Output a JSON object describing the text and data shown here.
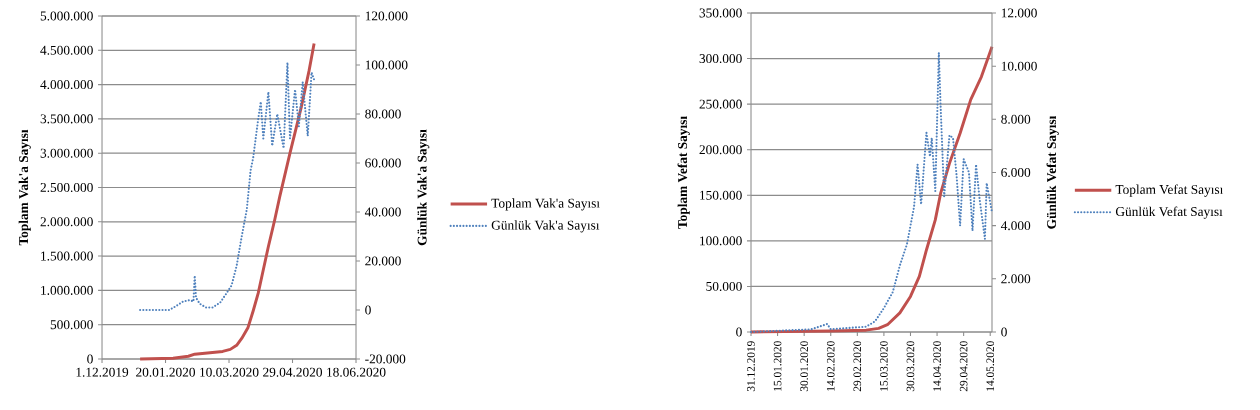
{
  "chart_data": [
    {
      "type": "line",
      "ylabel": "Toplam Vak'a Sayısı",
      "y2label": "Günlük  Vak'a Sayısı",
      "grid": "y",
      "legend": "right",
      "xlim": [
        "2019-12-01",
        "2020-06-18"
      ],
      "xticks": [
        {
          "value": "2019-12-01",
          "label": "1.12.2019"
        },
        {
          "value": "2020-01-20",
          "label": "20.01.2020"
        },
        {
          "value": "2020-03-10",
          "label": "10.03.2020"
        },
        {
          "value": "2020-04-29",
          "label": "29.04.2020"
        },
        {
          "value": "2020-06-18",
          "label": "18.06.2020"
        }
      ],
      "ylim": [
        0,
        5000000
      ],
      "yticks": [
        0,
        {
          "value": 500000,
          "label": "500.000"
        },
        {
          "value": 1000000,
          "label": "1.000.000"
        },
        {
          "value": 1500000,
          "label": "1.500.000"
        },
        {
          "value": 2000000,
          "label": "2.000.000"
        },
        {
          "value": 2500000,
          "label": "2.500.000"
        },
        {
          "value": 3000000,
          "label": "3.000.000"
        },
        {
          "value": 3500000,
          "label": "3.500.000"
        },
        {
          "value": 4000000,
          "label": "4.000.000"
        },
        {
          "value": 4500000,
          "label": "4.500.000"
        },
        {
          "value": 5000000,
          "label": "5.000.000"
        }
      ],
      "y2lim": [
        -20000,
        120000
      ],
      "y2ticks": [
        {
          "value": -20000,
          "label": "-20.000"
        },
        0,
        {
          "value": 20000,
          "label": "20.000"
        },
        {
          "value": 40000,
          "label": "40.000"
        },
        {
          "value": 60000,
          "label": "60.000"
        },
        {
          "value": 80000,
          "label": "80.000"
        },
        {
          "value": 100000,
          "label": "100.000"
        },
        {
          "value": 120000,
          "label": "120.000"
        }
      ],
      "series": [
        {
          "name": "Toplam Vak'a Sayısı",
          "color": "#c0504d",
          "line_style": "solid",
          "x": [
            "2019-12-31",
            "2020-01-26",
            "2020-02-07",
            "2020-02-12",
            "2020-02-24",
            "2020-03-05",
            "2020-03-11",
            "2020-03-16",
            "2020-03-20",
            "2020-03-25",
            "2020-03-29",
            "2020-04-02",
            "2020-04-06",
            "2020-04-10",
            "2020-04-15",
            "2020-04-19",
            "2020-04-27",
            "2020-05-06",
            "2020-05-12",
            "2020-05-16"
          ],
          "values": [
            0,
            10000,
            40000,
            70000,
            90000,
            110000,
            140000,
            200000,
            300000,
            460000,
            700000,
            960000,
            1300000,
            1640000,
            2030000,
            2370000,
            3000000,
            3680000,
            4200000,
            4600000
          ]
        },
        {
          "name": "Günlük Vak'a Sayısı",
          "color": "#4f81bd",
          "line_style": "dotted",
          "axis": "y2",
          "x": [
            "2019-12-31",
            "2020-01-23",
            "2020-01-28",
            "2020-02-03",
            "2020-02-08",
            "2020-02-11",
            "2020-02-12",
            "2020-02-13",
            "2020-02-16",
            "2020-02-21",
            "2020-02-26",
            "2020-03-03",
            "2020-03-07",
            "2020-03-12",
            "2020-03-16",
            "2020-03-20",
            "2020-03-24",
            "2020-03-27",
            "2020-03-29",
            "2020-04-02",
            "2020-04-04",
            "2020-04-06",
            "2020-04-10",
            "2020-04-13",
            "2020-04-17",
            "2020-04-22",
            "2020-04-25",
            "2020-04-27",
            "2020-05-01",
            "2020-05-04",
            "2020-05-07",
            "2020-05-11",
            "2020-05-14",
            "2020-05-16"
          ],
          "values": [
            0,
            0,
            1500,
            3500,
            4000,
            3500,
            14000,
            5000,
            2500,
            1000,
            1000,
            3000,
            6000,
            10000,
            18000,
            30000,
            41000,
            57000,
            62000,
            78000,
            85000,
            70000,
            89000,
            67000,
            80000,
            66000,
            101000,
            70000,
            90000,
            75000,
            93000,
            71000,
            97000,
            94000
          ]
        }
      ]
    },
    {
      "type": "line",
      "ylabel": "Toplam Vefat Sayısı",
      "y2label": "Günlük  Vefat Sayısı",
      "grid": "y",
      "legend": "right",
      "xlim": [
        "2019-12-31",
        "2020-05-15"
      ],
      "xticks": [
        {
          "value": "2019-12-31",
          "label": "31.12.2019"
        },
        {
          "value": "2020-01-15",
          "label": "15.01.2020"
        },
        {
          "value": "2020-01-30",
          "label": "30.01.2020"
        },
        {
          "value": "2020-02-14",
          "label": "14.02.2020"
        },
        {
          "value": "2020-02-29",
          "label": "29.02.2020"
        },
        {
          "value": "2020-03-15",
          "label": "15.03.2020"
        },
        {
          "value": "2020-03-30",
          "label": "30.03.2020"
        },
        {
          "value": "2020-04-14",
          "label": "14.04.2020"
        },
        {
          "value": "2020-04-29",
          "label": "29.04.2020"
        },
        {
          "value": "2020-05-14",
          "label": "14.05.2020"
        }
      ],
      "ylim": [
        0,
        350000
      ],
      "yticks": [
        0,
        {
          "value": 50000,
          "label": "50.000"
        },
        {
          "value": 100000,
          "label": "100.000"
        },
        {
          "value": 150000,
          "label": "150.000"
        },
        {
          "value": 200000,
          "label": "200.000"
        },
        {
          "value": 250000,
          "label": "250.000"
        },
        {
          "value": 300000,
          "label": "300.000"
        },
        {
          "value": 350000,
          "label": "350.000"
        }
      ],
      "y2lim": [
        0,
        12000
      ],
      "y2ticks": [
        0,
        {
          "value": 2000,
          "label": "2.000"
        },
        {
          "value": 4000,
          "label": "4.000"
        },
        {
          "value": 6000,
          "label": "6.000"
        },
        {
          "value": 8000,
          "label": "8.000"
        },
        {
          "value": 10000,
          "label": "10.000"
        },
        {
          "value": 12000,
          "label": "12.000"
        }
      ],
      "series": [
        {
          "name": "Toplam Vefat Sayısı",
          "color": "#c0504d",
          "line_style": "solid",
          "x": [
            "2019-12-31",
            "2020-02-14",
            "2020-03-05",
            "2020-03-12",
            "2020-03-17",
            "2020-03-24",
            "2020-03-30",
            "2020-04-04",
            "2020-04-08",
            "2020-04-13",
            "2020-04-16",
            "2020-04-21",
            "2020-04-27",
            "2020-05-03",
            "2020-05-09",
            "2020-05-15"
          ],
          "values": [
            0,
            1000,
            2000,
            4000,
            8000,
            21000,
            39000,
            61000,
            90000,
            123000,
            152000,
            185000,
            218000,
            255000,
            280000,
            313000
          ]
        },
        {
          "name": "Günlük Vefat Sayısı",
          "color": "#4f81bd",
          "line_style": "dotted",
          "axis": "y2",
          "x": [
            "2019-12-31",
            "2020-02-03",
            "2020-02-12",
            "2020-02-14",
            "2020-03-05",
            "2020-03-10",
            "2020-03-15",
            "2020-03-20",
            "2020-03-24",
            "2020-03-28",
            "2020-04-01",
            "2020-04-03",
            "2020-04-05",
            "2020-04-08",
            "2020-04-10",
            "2020-04-11",
            "2020-04-13",
            "2020-04-15",
            "2020-04-16",
            "2020-04-18",
            "2020-04-21",
            "2020-04-23",
            "2020-04-25",
            "2020-04-27",
            "2020-04-29",
            "2020-05-02",
            "2020-05-04",
            "2020-05-06",
            "2020-05-08",
            "2020-05-11",
            "2020-05-12",
            "2020-05-15"
          ],
          "values": [
            0,
            100,
            300,
            100,
            200,
            400,
            900,
            1500,
            2500,
            3300,
            4700,
            6300,
            4800,
            7500,
            6600,
            7300,
            5300,
            10500,
            8500,
            5100,
            7400,
            7300,
            5900,
            4000,
            6500,
            6000,
            3800,
            6300,
            5000,
            3500,
            5600,
            4500
          ]
        }
      ]
    }
  ]
}
